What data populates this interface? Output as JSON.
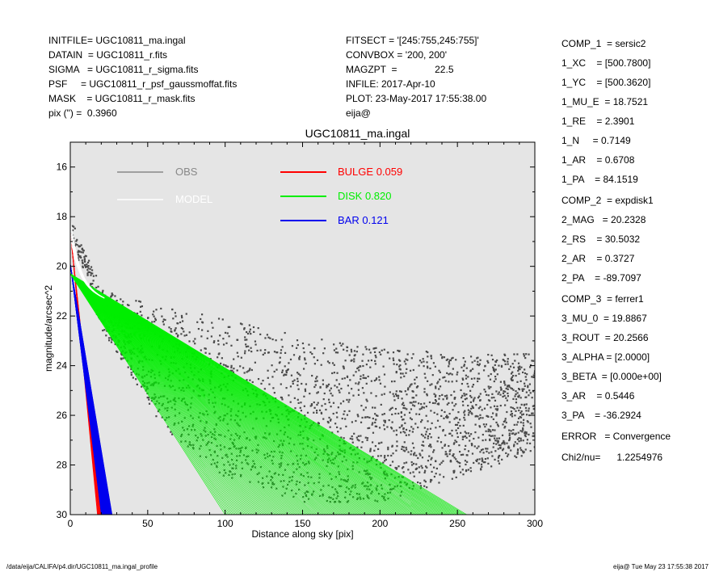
{
  "header_left": [
    "INITFILE= UGC10811_ma.ingal",
    "DATAIN  = UGC10811_r.fits",
    "SIGMA   = UGC10811_r_sigma.fits",
    "PSF     = UGC10811_r_psf_gaussmoffat.fits",
    "MASK    = UGC10811_r_mask.fits",
    "pix (\") =  0.3960"
  ],
  "header_mid": [
    "FITSECT = '[245:755,245:755]'",
    "CONVBOX = '200, 200'",
    "MAGZPT  =              22.5",
    "INFILE: 2017-Apr-10",
    "PLOT: 23-May-2017 17:55:38.00",
    "eija@"
  ],
  "params": [
    "COMP_1  = sersic2",
    "1_XC    = [500.7800]",
    "1_YC    = [500.3620]",
    "1_MU_E  = 18.7521",
    "1_RE    = 2.3901",
    "1_N     = 0.7149",
    "1_AR    = 0.6708",
    "1_PA    = 84.1519",
    "",
    "COMP_2  = expdisk1",
    "2_MAG   = 20.2328",
    "2_RS    = 30.5032",
    "2_AR    = 0.3727",
    "2_PA    = -89.7097",
    "",
    "COMP_3  = ferrer1",
    "3_MU_0  = 19.8867",
    "3_ROUT  = 20.2566",
    "3_ALPHA = [2.0000]",
    "3_BETA  = [0.000e+00]",
    "3_AR    = 0.5446",
    "3_PA    = -36.2924",
    "",
    "ERROR   = Convergence",
    "",
    "Chi2/nu=      1.2254976"
  ],
  "footer_left": "/data/eija/CALIFA/p4.dir/UGC10811_ma.ingal_profile",
  "footer_right": "eija@  Tue May 23 17:55:38 2017",
  "colors": {
    "plot_bg": "#e5e5e5",
    "obs": "#4a4a4a",
    "model": "#ffffff",
    "bulge": "#ff0000",
    "disk": "#00ee00",
    "bar": "#0000ee"
  },
  "chart_data": {
    "type": "scatter",
    "title": "UGC10811_ma.ingal",
    "xlabel": "Distance along sky [pix]",
    "ylabel": "magnitude/arcsec^2",
    "xlim": [
      0,
      300
    ],
    "ylim": [
      30,
      15
    ],
    "xticks": [
      0,
      50,
      100,
      150,
      200,
      250,
      300
    ],
    "yticks": [
      16,
      18,
      20,
      22,
      24,
      26,
      28,
      30
    ],
    "legend": [
      {
        "label": "OBS",
        "value": "",
        "color": "#888888"
      },
      {
        "label": "MODEL",
        "value": "",
        "color": "#ffffff"
      },
      {
        "label": "BULGE",
        "value": "0.059",
        "color": "#ff0000"
      },
      {
        "label": "DISK",
        "value": "0.820",
        "color": "#00ee00"
      },
      {
        "label": "BAR",
        "value": "0.121",
        "color": "#0000ee"
      }
    ],
    "series": [
      {
        "name": "BULGE",
        "fan_x_start": [
          0,
          0
        ],
        "fan_y_start": [
          18.6,
          18.6
        ],
        "fan_x_end": [
          17.5,
          20.0
        ],
        "fan_y_end": [
          30,
          30
        ]
      },
      {
        "name": "DISK",
        "fan_x_start": [
          0,
          0
        ],
        "fan_y_start": [
          20.3,
          20.3
        ],
        "fan_x_end": [
          100,
          256
        ],
        "fan_y_end": [
          30,
          30
        ]
      },
      {
        "name": "BAR",
        "fan_x_start": [
          0,
          0
        ],
        "fan_y_start": [
          19.9,
          19.9
        ],
        "fan_x_end": [
          20,
          27
        ],
        "fan_y_end": [
          30,
          30
        ]
      },
      {
        "name": "OBS",
        "envelope_x": [
          0,
          10,
          20,
          30,
          60,
          100,
          150,
          200,
          250,
          300
        ],
        "envelope_upper": [
          18.0,
          19.5,
          20.8,
          21.2,
          21.6,
          22.1,
          22.8,
          23.3,
          23.5,
          23.5
        ],
        "envelope_lower": [
          19.0,
          20.5,
          22.5,
          23.5,
          26.5,
          28.5,
          29.5,
          29.5,
          28.5,
          27.5
        ]
      }
    ]
  }
}
